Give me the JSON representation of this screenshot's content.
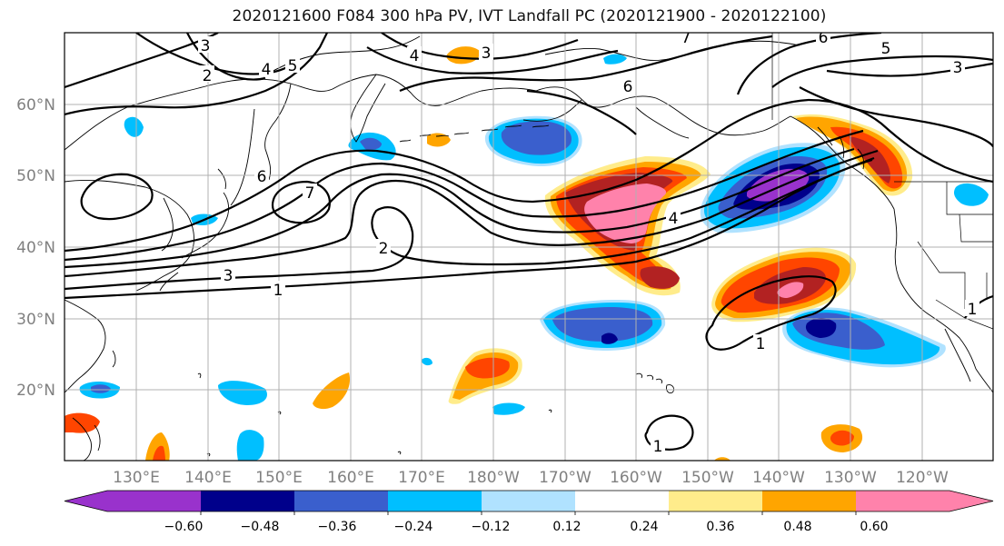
{
  "title": "2020121600 F084 300 hPa PV, IVT Landfall PC (2020121900 - 2020122100)",
  "lat_labels": [
    "60°N",
    "50°N",
    "40°N",
    "30°N",
    "20°N"
  ],
  "lon_labels": [
    "130°E",
    "140°E",
    "150°E",
    "160°E",
    "170°E",
    "180°W",
    "170°W",
    "160°W",
    "150°W",
    "140°W",
    "130°W",
    "120°W"
  ],
  "colorbar": {
    "tick_labels": [
      "−0.60",
      "−0.48",
      "−0.36",
      "−0.24",
      "−0.12",
      "0.12",
      "0.24",
      "0.36",
      "0.48",
      "0.60"
    ],
    "colors": [
      "#9932CC",
      "#00008B",
      "#3A5FCD",
      "#00BFFF",
      "#B0E2FF",
      "#FFFFFF",
      "#FFEC8B",
      "#FFA500",
      "#FF4500",
      "#B22222",
      "#FF82AB"
    ]
  },
  "contour_labels": [
    "3",
    "2",
    "4",
    "5",
    "4",
    "3",
    "7",
    "6",
    "6",
    "5",
    "3",
    "6",
    "7",
    "2",
    "3",
    "1",
    "4",
    "1",
    "1",
    "1"
  ],
  "shading": {
    "anomaly_levels": [
      -0.6,
      -0.48,
      -0.36,
      -0.24,
      -0.12,
      0.12,
      0.24,
      0.36,
      0.48,
      0.6
    ]
  }
}
